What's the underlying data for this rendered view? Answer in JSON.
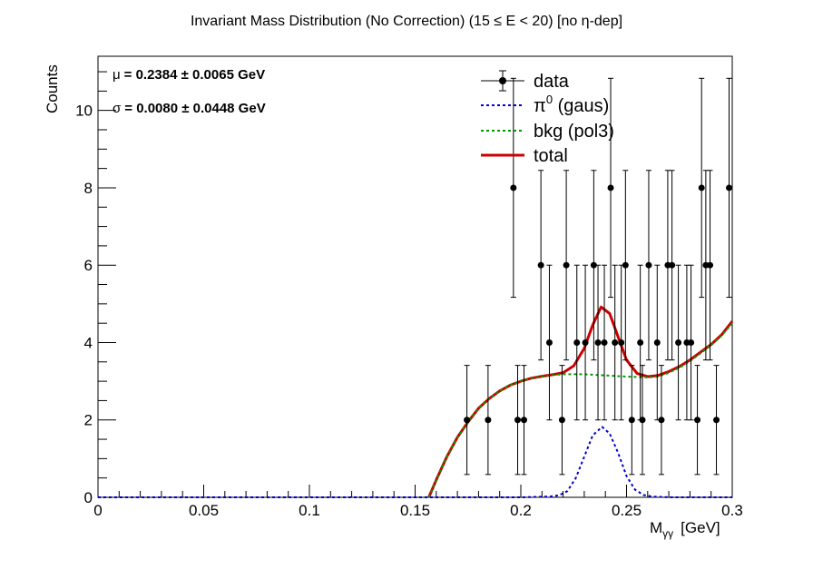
{
  "chart_data": {
    "type": "scatter",
    "title": "Invariant Mass Distribution (No Correction)   (15 ≤ E < 20)   [no η-dep]",
    "xlabel": "M",
    "xlabel_sub": "γγ",
    "xlabel_unit": "[GeV]",
    "ylabel": "Counts",
    "xlim": [
      0,
      0.3
    ],
    "ylim": [
      0,
      11.4
    ],
    "xticks": [
      0,
      0.05,
      0.1,
      0.15,
      0.2,
      0.25,
      0.3
    ],
    "xtick_labels": [
      "0",
      "0.05",
      "0.1",
      "0.15",
      "0.2",
      "0.25",
      "0.3"
    ],
    "yticks": [
      0,
      2,
      4,
      6,
      8,
      10
    ],
    "ytick_labels": [
      "0",
      "2",
      "4",
      "6",
      "8",
      "10"
    ],
    "stats": [
      {
        "symbol": "μ",
        "text": "= 0.2384  ± 0.0065 GeV"
      },
      {
        "symbol": "σ",
        "text": "= 0.0080  ± 0.0448 GeV"
      }
    ],
    "legend": {
      "placement": "top-right",
      "entries": [
        {
          "label": "data",
          "style": "marker",
          "color": "#000000"
        },
        {
          "label": "π",
          "sup": "0",
          "rest": " (gaus)",
          "style": "dotted",
          "color": "#0000cc"
        },
        {
          "label": "bkg (pol3)",
          "style": "dotted",
          "color": "#009900"
        },
        {
          "label": "total",
          "style": "solid",
          "color": "#cc0000"
        }
      ]
    },
    "series": [
      {
        "name": "data",
        "type": "points",
        "color": "#000000",
        "points": [
          {
            "x": 0.1745,
            "y": 2
          },
          {
            "x": 0.1845,
            "y": 2
          },
          {
            "x": 0.1965,
            "y": 8
          },
          {
            "x": 0.1985,
            "y": 2
          },
          {
            "x": 0.2015,
            "y": 2
          },
          {
            "x": 0.2095,
            "y": 6
          },
          {
            "x": 0.2135,
            "y": 4
          },
          {
            "x": 0.2195,
            "y": 2
          },
          {
            "x": 0.2215,
            "y": 6
          },
          {
            "x": 0.2265,
            "y": 4
          },
          {
            "x": 0.2305,
            "y": 4
          },
          {
            "x": 0.2345,
            "y": 6
          },
          {
            "x": 0.2365,
            "y": 4
          },
          {
            "x": 0.2395,
            "y": 4
          },
          {
            "x": 0.2425,
            "y": 8
          },
          {
            "x": 0.2445,
            "y": 4
          },
          {
            "x": 0.2475,
            "y": 4
          },
          {
            "x": 0.2495,
            "y": 6
          },
          {
            "x": 0.2525,
            "y": 2
          },
          {
            "x": 0.2565,
            "y": 4
          },
          {
            "x": 0.2575,
            "y": 2
          },
          {
            "x": 0.2605,
            "y": 6
          },
          {
            "x": 0.2645,
            "y": 4
          },
          {
            "x": 0.2665,
            "y": 2
          },
          {
            "x": 0.2695,
            "y": 6
          },
          {
            "x": 0.2715,
            "y": 6
          },
          {
            "x": 0.2745,
            "y": 4
          },
          {
            "x": 0.2785,
            "y": 4
          },
          {
            "x": 0.2805,
            "y": 4
          },
          {
            "x": 0.2835,
            "y": 2
          },
          {
            "x": 0.2855,
            "y": 8
          },
          {
            "x": 0.2875,
            "y": 6
          },
          {
            "x": 0.2895,
            "y": 6
          },
          {
            "x": 0.2925,
            "y": 2
          },
          {
            "x": 0.2985,
            "y": 8
          }
        ]
      },
      {
        "name": "total",
        "type": "line",
        "color": "#cc0000",
        "x": [
          0.1565,
          0.16,
          0.165,
          0.17,
          0.175,
          0.18,
          0.185,
          0.19,
          0.195,
          0.2,
          0.205,
          0.21,
          0.215,
          0.22,
          0.225,
          0.23,
          0.234,
          0.238,
          0.242,
          0.246,
          0.25,
          0.255,
          0.26,
          0.265,
          0.27,
          0.275,
          0.28,
          0.285,
          0.29,
          0.295,
          0.3
        ],
        "y": [
          0.0,
          0.45,
          1.05,
          1.55,
          1.95,
          2.3,
          2.55,
          2.75,
          2.9,
          3.0,
          3.08,
          3.13,
          3.17,
          3.22,
          3.4,
          3.85,
          4.45,
          4.92,
          4.75,
          4.15,
          3.55,
          3.2,
          3.12,
          3.15,
          3.25,
          3.38,
          3.55,
          3.75,
          3.95,
          4.2,
          4.55
        ]
      },
      {
        "name": "bkg (pol3)",
        "type": "line",
        "color": "#009900",
        "x": [
          0.1565,
          0.16,
          0.165,
          0.17,
          0.175,
          0.18,
          0.185,
          0.19,
          0.195,
          0.2,
          0.205,
          0.21,
          0.215,
          0.22,
          0.23,
          0.24,
          0.25,
          0.26,
          0.265,
          0.27,
          0.275,
          0.28,
          0.285,
          0.29,
          0.295,
          0.3
        ],
        "y": [
          0.0,
          0.45,
          1.05,
          1.55,
          1.95,
          2.3,
          2.55,
          2.75,
          2.9,
          3.0,
          3.08,
          3.13,
          3.16,
          3.18,
          3.18,
          3.15,
          3.12,
          3.1,
          3.12,
          3.22,
          3.35,
          3.52,
          3.72,
          3.93,
          4.18,
          4.5
        ]
      },
      {
        "name": "π0 (gaus)",
        "type": "line",
        "color": "#0000cc",
        "x": [
          0.0,
          0.05,
          0.1,
          0.15,
          0.2,
          0.214,
          0.218,
          0.222,
          0.226,
          0.23,
          0.234,
          0.2384,
          0.242,
          0.246,
          0.25,
          0.254,
          0.258,
          0.262,
          0.27,
          0.3
        ],
        "y": [
          0.0,
          0.0,
          0.0,
          0.0,
          0.0,
          0.02,
          0.05,
          0.16,
          0.5,
          1.05,
          1.6,
          1.82,
          1.65,
          1.15,
          0.55,
          0.2,
          0.06,
          0.02,
          0.0,
          0.0
        ]
      }
    ],
    "errors": {
      "2": 1.41,
      "4": 2.0,
      "6": 2.45,
      "8": 2.83
    }
  }
}
